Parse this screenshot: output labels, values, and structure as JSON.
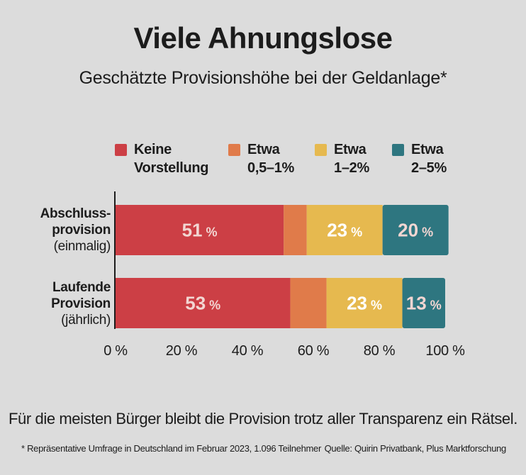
{
  "title": "Viele Ahnungslose",
  "subtitle": "Geschätzte Provisionshöhe bei der Geldanlage*",
  "legend": [
    {
      "line1": "Keine",
      "line2": "Vorstellung",
      "color": "#cc3f45"
    },
    {
      "line1": "Etwa",
      "line2": "0,5–1%",
      "color": "#e07b4a"
    },
    {
      "line1": "Etwa",
      "line2": "1–2%",
      "color": "#e6b94f"
    },
    {
      "line1": "Etwa",
      "line2": "2–5%",
      "color": "#2e7680"
    }
  ],
  "rows": [
    {
      "label_line1": "Abschluss-",
      "label_line2": "provision",
      "label_line3": "(einmalig)"
    },
    {
      "label_line1": "Laufende",
      "label_line2": "Provision",
      "label_line3": "(jährlich)"
    }
  ],
  "chart_data": {
    "type": "bar",
    "orientation": "horizontal",
    "stacked": true,
    "categories": [
      "Abschlussprovision (einmalig)",
      "Laufende Provision (jährlich)"
    ],
    "series": [
      {
        "name": "Keine Vorstellung",
        "values": [
          51,
          53
        ],
        "labels": [
          "51 %",
          "53 %"
        ],
        "color": "#cc3f45"
      },
      {
        "name": "Etwa 0,5–1%",
        "values": [
          7,
          11
        ],
        "labels": [
          "",
          ""
        ],
        "color": "#e07b4a"
      },
      {
        "name": "Etwa 1–2%",
        "values": [
          23,
          23
        ],
        "labels": [
          "23 %",
          "23 %"
        ],
        "color": "#e6b94f"
      },
      {
        "name": "Etwa 2–5%",
        "values": [
          20,
          13
        ],
        "labels": [
          "20 %",
          "13 %"
        ],
        "color": "#2e7680"
      }
    ],
    "xlim": [
      0,
      100
    ],
    "xticks": [
      "0 %",
      "20 %",
      "40 %",
      "60 %",
      "80 %",
      "100 %"
    ],
    "label_colors": {
      "on_dark": "#f2d6d2",
      "on_yellow": "#ffffff"
    },
    "legend_position": "top",
    "grid": false
  },
  "caption": "Für die meisten Bürger bleibt die Provision trotz aller Transparenz ein Rätsel.",
  "footnote": "* Repräsentative Umfrage in Deutschland im Februar 2023, 1.096 Teilnehmer",
  "source": "Quelle: Quirin Privatbank, Plus Marktforschung"
}
